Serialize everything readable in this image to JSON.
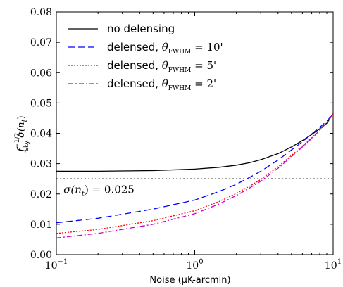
{
  "chart_data": {
    "type": "line",
    "x_scale": "log",
    "xlim": [
      0.1,
      10
    ],
    "ylim": [
      0.0,
      0.08
    ],
    "xlabel": "Noise (μK-arcmin)",
    "ylabel": "f_sky^{-1/2} σ(n_t)",
    "ylabel_main": "σ(n",
    "ylabel_sub_t": "t",
    "ylabel_close": ")",
    "ylabel_f": "f",
    "ylabel_sup": "−1/2",
    "ylabel_sub": "sky",
    "x_ticks": [
      {
        "value": 0.1,
        "base": "10",
        "exp": "−1"
      },
      {
        "value": 1,
        "base": "10",
        "exp": "0"
      },
      {
        "value": 10,
        "base": "10",
        "exp": "1"
      }
    ],
    "y_ticks": [
      "0.00",
      "0.01",
      "0.02",
      "0.03",
      "0.04",
      "0.05",
      "0.06",
      "0.07",
      "0.08"
    ],
    "grid": false,
    "legend_position": "top-left",
    "series": [
      {
        "name": "no delensing",
        "legend_text": "no delensing",
        "legend_math": "",
        "color": "#000000",
        "dash": "",
        "x": [
          0.1,
          0.2,
          0.5,
          1,
          1.5,
          2,
          2.5,
          3,
          4,
          5,
          6,
          7,
          8,
          9,
          10
        ],
        "y": [
          0.0275,
          0.0275,
          0.0277,
          0.0282,
          0.0288,
          0.0295,
          0.0303,
          0.0313,
          0.0333,
          0.0355,
          0.0376,
          0.0396,
          0.0415,
          0.0433,
          0.0465
        ]
      },
      {
        "name": "delensed, θFWHM = 10'",
        "legend_text": "delensed, ",
        "legend_math": "θ",
        "legend_sub": "FWHM",
        "legend_eq": " = 10'",
        "color": "#0000ff",
        "dash": "9,5",
        "x": [
          0.1,
          0.2,
          0.5,
          1,
          1.5,
          2,
          2.5,
          3,
          4,
          5,
          6,
          7,
          8,
          9,
          10
        ],
        "y": [
          0.0105,
          0.012,
          0.015,
          0.018,
          0.0208,
          0.0232,
          0.0255,
          0.0275,
          0.0312,
          0.0345,
          0.0372,
          0.0398,
          0.042,
          0.044,
          0.0465
        ]
      },
      {
        "name": "delensed, θFWHM = 5'",
        "legend_text": "delensed, ",
        "legend_math": "θ",
        "legend_sub": "FWHM",
        "legend_eq": " = 5'",
        "color": "#ff0000",
        "dash": "2,2",
        "x": [
          0.1,
          0.2,
          0.5,
          1,
          1.5,
          2,
          2.5,
          3,
          4,
          5,
          6,
          7,
          8,
          9,
          10
        ],
        "y": [
          0.007,
          0.0083,
          0.0112,
          0.0145,
          0.0175,
          0.0202,
          0.0226,
          0.0248,
          0.029,
          0.0327,
          0.0358,
          0.0385,
          0.0412,
          0.0436,
          0.0465
        ]
      },
      {
        "name": "delensed, θFWHM = 2'",
        "legend_text": "delensed, ",
        "legend_math": "θ",
        "legend_sub": "FWHM",
        "legend_eq": " = 2'",
        "color": "#cc00cc",
        "dash": "7,3,2,3",
        "x": [
          0.1,
          0.2,
          0.5,
          1,
          1.5,
          2,
          2.5,
          3,
          4,
          5,
          6,
          7,
          8,
          9,
          10
        ],
        "y": [
          0.0055,
          0.007,
          0.01,
          0.0135,
          0.0167,
          0.0195,
          0.022,
          0.0242,
          0.0285,
          0.0323,
          0.0355,
          0.0383,
          0.041,
          0.0435,
          0.0465
        ]
      }
    ],
    "reference_line": {
      "y": 0.025,
      "color": "#000000",
      "dash": "2,3"
    },
    "annotation": {
      "text_main": "σ(n",
      "text_sub": "t",
      "text_rest": ") = 0.025",
      "x": 0.105,
      "y": 0.0215
    }
  }
}
